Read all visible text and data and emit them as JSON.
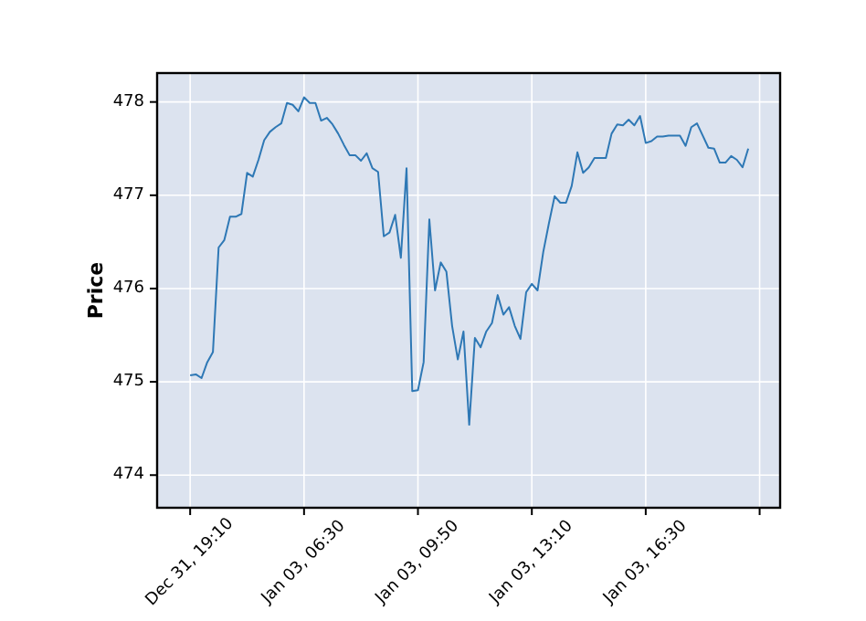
{
  "chart_data": {
    "type": "line",
    "ylabel": "Price",
    "categories": [
      "Dec 31, 19:10",
      null,
      null,
      null,
      null,
      null,
      null,
      null,
      null,
      null,
      null,
      null,
      null,
      null,
      null,
      null,
      null,
      null,
      null,
      null,
      "Jan 03, 06:30",
      null,
      null,
      null,
      null,
      null,
      null,
      null,
      null,
      null,
      null,
      null,
      null,
      null,
      null,
      null,
      null,
      null,
      null,
      null,
      "Jan 03, 09:50",
      null,
      null,
      null,
      null,
      null,
      null,
      null,
      null,
      null,
      null,
      null,
      null,
      null,
      null,
      null,
      null,
      null,
      null,
      null,
      "Jan 03, 13:10",
      null,
      null,
      null,
      null,
      null,
      null,
      null,
      null,
      null,
      null,
      null,
      null,
      null,
      null,
      null,
      null,
      null,
      null,
      null,
      "Jan 03, 16:30",
      null,
      null,
      null,
      null,
      null,
      null,
      null,
      null,
      null,
      null,
      null,
      null,
      null,
      null,
      null,
      null,
      null,
      null
    ],
    "series": [
      {
        "color": "#2e78b5",
        "values": [
          475.07,
          475.08,
          475.04,
          475.21,
          475.32,
          476.44,
          476.52,
          476.77,
          476.77,
          476.8,
          477.24,
          477.2,
          477.38,
          477.59,
          477.68,
          477.73,
          477.77,
          477.99,
          477.97,
          477.9,
          478.05,
          477.99,
          477.99,
          477.8,
          477.83,
          477.76,
          477.66,
          477.54,
          477.43,
          477.43,
          477.37,
          477.45,
          477.29,
          477.25,
          476.56,
          476.6,
          476.79,
          476.33,
          477.29,
          474.9,
          474.91,
          475.21,
          476.74,
          475.98,
          476.28,
          476.18,
          475.6,
          475.24,
          475.54,
          474.54,
          475.47,
          475.37,
          475.54,
          475.63,
          475.93,
          475.72,
          475.8,
          475.6,
          475.46,
          475.96,
          476.05,
          475.98,
          476.39,
          476.7,
          476.99,
          476.92,
          476.92,
          477.1,
          477.46,
          477.24,
          477.3,
          477.4,
          477.4,
          477.4,
          477.66,
          477.76,
          477.75,
          477.81,
          477.75,
          477.85,
          477.56,
          477.58,
          477.63,
          477.63,
          477.64,
          477.64,
          477.64,
          477.53,
          477.73,
          477.77,
          477.64,
          477.51,
          477.5,
          477.35,
          477.35,
          477.42,
          477.38,
          477.3,
          477.5
        ]
      }
    ],
    "ylim": [
      473.65,
      478.31
    ],
    "yticks": [
      474,
      475,
      476,
      477,
      478
    ],
    "grid": true,
    "line_style": "solid"
  }
}
